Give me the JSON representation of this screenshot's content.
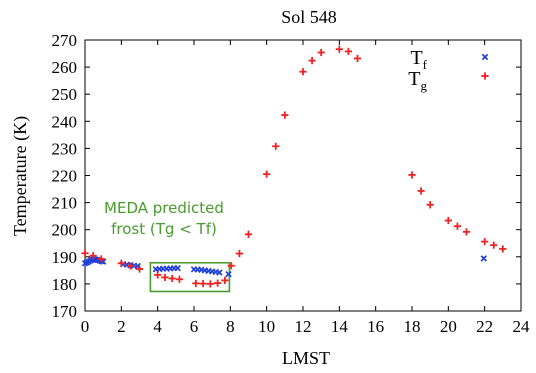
{
  "chart_data": {
    "type": "scatter",
    "title": "Sol 548",
    "xlabel": "LMST",
    "ylabel": "Temperature (K)",
    "xlim": [
      0,
      24
    ],
    "ylim": [
      170,
      270
    ],
    "xticks": [
      0,
      2,
      4,
      6,
      8,
      10,
      12,
      14,
      16,
      18,
      20,
      22,
      24
    ],
    "yticks": [
      170,
      180,
      190,
      200,
      210,
      220,
      230,
      240,
      250,
      260,
      270
    ],
    "grid": false,
    "legend": "top-right",
    "series": [
      {
        "name": "Tf",
        "legend_base": "T",
        "legend_sub": "f",
        "marker": "x",
        "color": "#1f3fd8",
        "points": [
          [
            0.0,
            187.6
          ],
          [
            0.1,
            187.9
          ],
          [
            0.2,
            188.2
          ],
          [
            0.3,
            188.6
          ],
          [
            0.4,
            188.9
          ],
          [
            0.5,
            189.1
          ],
          [
            0.6,
            189.0
          ],
          [
            0.7,
            188.8
          ],
          [
            0.8,
            188.6
          ],
          [
            0.9,
            188.4
          ],
          [
            1.0,
            188.2
          ],
          [
            2.1,
            187.3
          ],
          [
            2.3,
            187.1
          ],
          [
            2.5,
            186.9
          ],
          [
            2.7,
            186.7
          ],
          [
            2.9,
            186.6
          ],
          [
            3.9,
            185.4
          ],
          [
            4.1,
            185.5
          ],
          [
            4.3,
            185.6
          ],
          [
            4.5,
            185.6
          ],
          [
            4.7,
            185.7
          ],
          [
            4.9,
            185.8
          ],
          [
            5.1,
            185.8
          ],
          [
            6.0,
            185.4
          ],
          [
            6.2,
            185.3
          ],
          [
            6.4,
            185.2
          ],
          [
            6.6,
            185.0
          ],
          [
            6.8,
            184.8
          ],
          [
            7.0,
            184.6
          ],
          [
            7.2,
            184.4
          ],
          [
            7.4,
            184.2
          ],
          [
            7.9,
            183.6
          ],
          [
            21.95,
            189.4
          ]
        ]
      },
      {
        "name": "Tg",
        "legend_base": "T",
        "legend_sub": "g",
        "marker": "+",
        "color": "#ee2222",
        "points": [
          [
            0.0,
            191.3
          ],
          [
            0.45,
            190.4
          ],
          [
            0.9,
            189.2
          ],
          [
            2.0,
            187.6
          ],
          [
            2.5,
            186.6
          ],
          [
            3.0,
            185.5
          ],
          [
            4.0,
            183.3
          ],
          [
            4.4,
            182.4
          ],
          [
            4.8,
            182.0
          ],
          [
            5.2,
            181.7
          ],
          [
            6.1,
            180.2
          ],
          [
            6.5,
            180.1
          ],
          [
            6.9,
            180.0
          ],
          [
            7.3,
            180.3
          ],
          [
            7.7,
            181.3
          ],
          [
            8.05,
            186.7
          ],
          [
            8.5,
            191.2
          ],
          [
            9.0,
            198.3
          ],
          [
            10.0,
            220.5
          ],
          [
            10.5,
            230.8
          ],
          [
            11.0,
            242.3
          ],
          [
            12.0,
            258.3
          ],
          [
            12.5,
            262.4
          ],
          [
            13.0,
            265.4
          ],
          [
            14.0,
            266.6
          ],
          [
            14.5,
            265.8
          ],
          [
            15.0,
            263.2
          ],
          [
            18.0,
            220.2
          ],
          [
            18.5,
            214.3
          ],
          [
            19.0,
            209.2
          ],
          [
            20.0,
            203.4
          ],
          [
            20.5,
            201.3
          ],
          [
            21.0,
            199.2
          ],
          [
            22.0,
            195.6
          ],
          [
            22.5,
            194.3
          ],
          [
            23.0,
            192.9
          ]
        ]
      }
    ],
    "annotation": {
      "text_lines": [
        "MEDA predicted",
        "frost (Tg < Tf)"
      ],
      "color": "#4a9a2e",
      "box_x_range": [
        3.6,
        7.95
      ],
      "box_y_range": [
        177.2,
        187.8
      ]
    }
  }
}
